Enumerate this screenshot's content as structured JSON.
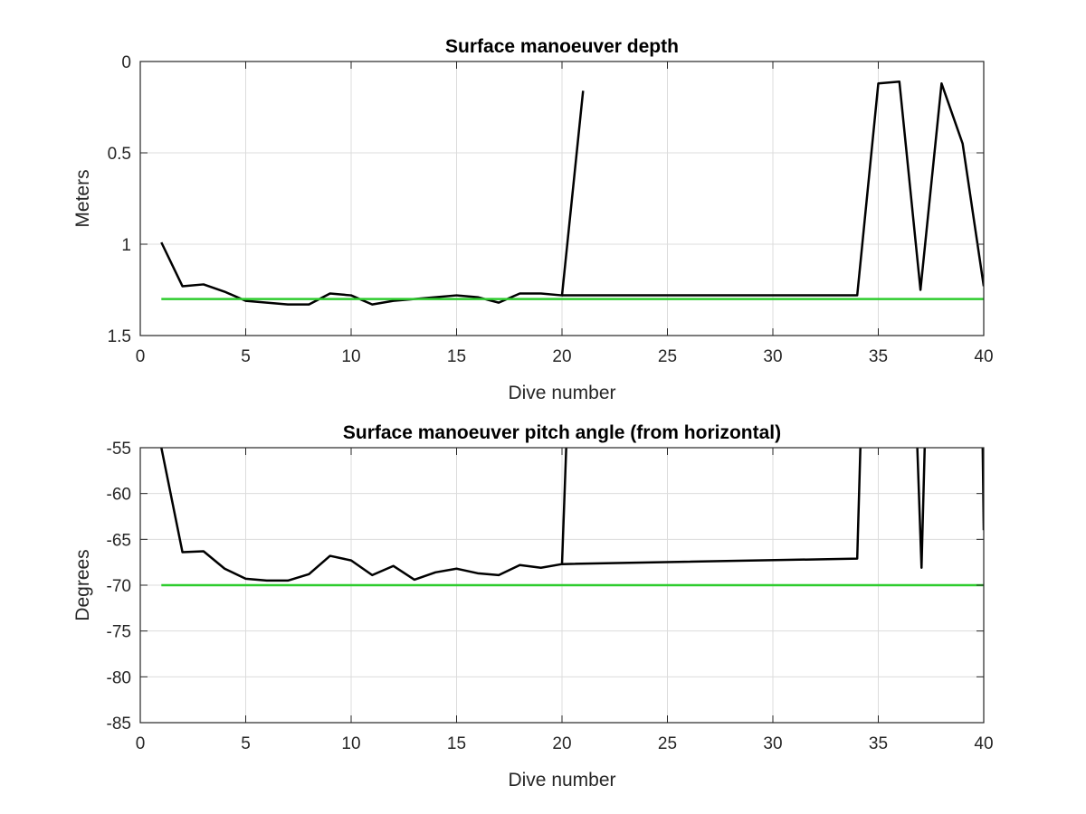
{
  "chart_data": [
    {
      "type": "line",
      "title": "Surface manoeuver depth",
      "xlabel": "Dive number",
      "ylabel": "Meters",
      "xlim": [
        0,
        40
      ],
      "ylim": [
        0,
        1.5
      ],
      "y_reversed": true,
      "xticks": [
        0,
        5,
        10,
        15,
        20,
        25,
        30,
        35,
        40
      ],
      "yticks": [
        0,
        0.5,
        1,
        1.5
      ],
      "xtick_labels": [
        "0",
        "5",
        "10",
        "15",
        "20",
        "25",
        "30",
        "35",
        "40"
      ],
      "ytick_labels": [
        "0",
        "0.5",
        "1",
        "1.5"
      ],
      "grid": true,
      "series": [
        {
          "color": "#000000",
          "points": [
            [
              1,
              0.99
            ],
            [
              2,
              1.23
            ],
            [
              3,
              1.22
            ],
            [
              4,
              1.26
            ],
            [
              5,
              1.31
            ],
            [
              6,
              1.32
            ],
            [
              7,
              1.33
            ],
            [
              8,
              1.33
            ],
            [
              9,
              1.27
            ],
            [
              10,
              1.28
            ],
            [
              11,
              1.33
            ],
            [
              12,
              1.31
            ],
            [
              13,
              1.3
            ],
            [
              14,
              1.29
            ],
            [
              15,
              1.28
            ],
            [
              16,
              1.29
            ],
            [
              17,
              1.32
            ],
            [
              18,
              1.27
            ],
            [
              19,
              1.27
            ],
            [
              20,
              1.28
            ],
            [
              21,
              0.16
            ]
          ]
        },
        {
          "color": "#000000",
          "points": [
            [
              20,
              1.28
            ],
            [
              34,
              1.28
            ],
            [
              35,
              0.12
            ],
            [
              36,
              0.11
            ],
            [
              37,
              1.25
            ],
            [
              38,
              0.12
            ],
            [
              39,
              0.45
            ],
            [
              40,
              1.23
            ]
          ]
        },
        {
          "color": "#2ecc2e",
          "points": [
            [
              1,
              1.3
            ],
            [
              40,
              1.3
            ]
          ]
        }
      ]
    },
    {
      "type": "line",
      "title": "Surface manoeuver pitch angle (from horizontal)",
      "xlabel": "Dive number",
      "ylabel": "Degrees",
      "xlim": [
        0,
        40
      ],
      "ylim": [
        -85,
        -55
      ],
      "xticks": [
        0,
        5,
        10,
        15,
        20,
        25,
        30,
        35,
        40
      ],
      "yticks": [
        -55,
        -60,
        -65,
        -70,
        -75,
        -80,
        -85
      ],
      "xtick_labels": [
        "0",
        "5",
        "10",
        "15",
        "20",
        "25",
        "30",
        "35",
        "40"
      ],
      "ytick_labels": [
        "-55",
        "-60",
        "-65",
        "-70",
        "-75",
        "-80",
        "-85"
      ],
      "grid": true,
      "series": [
        {
          "color": "#000000",
          "points": [
            [
              1,
              -55
            ],
            [
              2,
              -66.4
            ],
            [
              3,
              -66.3
            ],
            [
              4,
              -68.2
            ],
            [
              5,
              -69.3
            ],
            [
              6,
              -69.5
            ],
            [
              7,
              -69.5
            ],
            [
              8,
              -68.8
            ],
            [
              9,
              -66.8
            ],
            [
              10,
              -67.3
            ],
            [
              11,
              -68.9
            ],
            [
              12,
              -67.9
            ],
            [
              13,
              -69.4
            ],
            [
              14,
              -68.6
            ],
            [
              15,
              -68.2
            ],
            [
              16,
              -68.7
            ],
            [
              17,
              -68.9
            ],
            [
              18,
              -67.8
            ],
            [
              19,
              -68.1
            ],
            [
              20,
              -67.7
            ],
            [
              20.2,
              -55
            ]
          ]
        },
        {
          "color": "#000000",
          "points": [
            [
              20,
              -67.7
            ],
            [
              34,
              -67.1
            ],
            [
              34.15,
              -55
            ]
          ]
        },
        {
          "color": "#000000",
          "points": [
            [
              36.85,
              -55
            ],
            [
              37.05,
              -68.1
            ],
            [
              37.2,
              -55
            ]
          ]
        },
        {
          "color": "#000000",
          "points": [
            [
              39.95,
              -55
            ],
            [
              40,
              -64
            ]
          ]
        },
        {
          "color": "#2ecc2e",
          "points": [
            [
              1,
              -70
            ],
            [
              40,
              -70
            ]
          ]
        }
      ]
    }
  ]
}
